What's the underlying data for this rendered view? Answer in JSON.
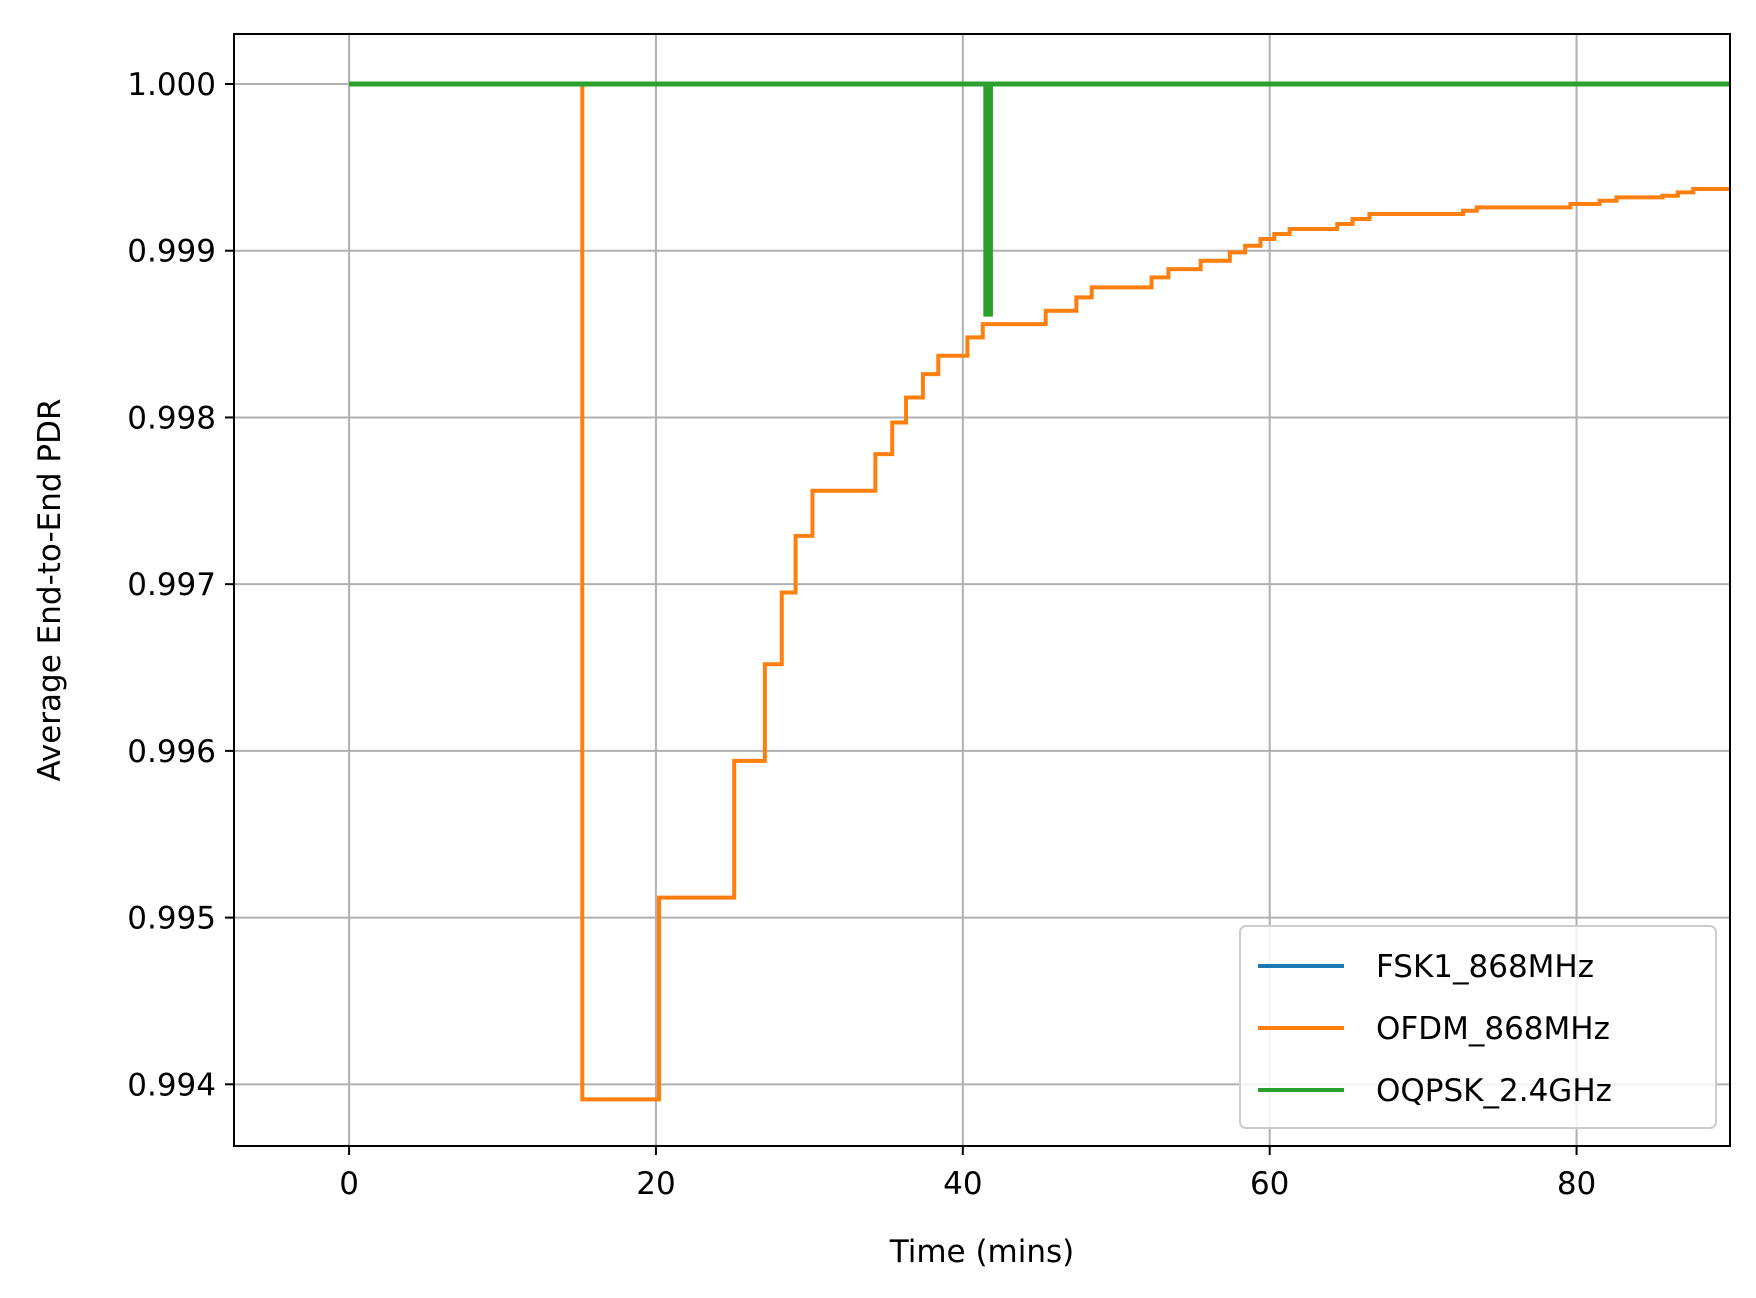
{
  "chart_data": {
    "type": "line",
    "title": "",
    "xlabel": "Time (mins)",
    "ylabel": "Average End-to-End PDR",
    "xlim": [
      -7.5,
      90
    ],
    "ylim": [
      0.99363,
      1.0003
    ],
    "xticks": [
      0,
      20,
      40,
      60,
      80
    ],
    "xtick_labels": [
      "0",
      "20",
      "40",
      "60",
      "80"
    ],
    "yticks": [
      0.994,
      0.995,
      0.996,
      0.997,
      0.998,
      0.999,
      1.0
    ],
    "ytick_labels": [
      "0.994",
      "0.995",
      "0.996",
      "0.997",
      "0.998",
      "0.999",
      "1.000"
    ],
    "grid": true,
    "legend_position": "lower right",
    "series": [
      {
        "name": "FSK1_868MHz",
        "color": "#1f77b4",
        "x": [
          0,
          90
        ],
        "y": [
          1.0,
          1.0
        ]
      },
      {
        "name": "OFDM_868MHz",
        "color": "#ff7f0e",
        "step": true,
        "x": [
          0,
          15.2,
          15.2,
          20.2,
          20.2,
          25.1,
          25.1,
          27.1,
          27.1,
          28.2,
          28.2,
          29.1,
          29.1,
          30.2,
          30.2,
          34.3,
          34.3,
          35.4,
          35.4,
          36.3,
          36.3,
          37.4,
          37.4,
          38.4,
          38.4,
          40.3,
          40.3,
          41.3,
          41.3,
          45.4,
          45.4,
          47.4,
          47.4,
          48.4,
          48.4,
          52.3,
          52.3,
          53.4,
          53.4,
          55.5,
          55.5,
          57.4,
          57.4,
          58.4,
          58.4,
          59.4,
          59.4,
          60.3,
          60.3,
          61.3,
          61.3,
          64.4,
          64.4,
          65.4,
          65.4,
          66.5,
          66.5,
          72.6,
          72.6,
          73.5,
          73.5,
          79.6,
          79.6,
          81.5,
          81.5,
          82.6,
          82.6,
          85.6,
          85.6,
          86.6,
          86.6,
          87.6,
          87.6,
          90
        ],
        "y": [
          1.0,
          1.0,
          0.99391,
          0.99391,
          0.99512,
          0.99512,
          0.99594,
          0.99594,
          0.99652,
          0.99652,
          0.99695,
          0.99695,
          0.99729,
          0.99729,
          0.99756,
          0.99756,
          0.99778,
          0.99778,
          0.99797,
          0.99797,
          0.99812,
          0.99812,
          0.99826,
          0.99826,
          0.99837,
          0.99837,
          0.99848,
          0.99848,
          0.99856,
          0.99856,
          0.99864,
          0.99864,
          0.99872,
          0.99872,
          0.99878,
          0.99878,
          0.99884,
          0.99884,
          0.99889,
          0.99889,
          0.99894,
          0.99894,
          0.99899,
          0.99899,
          0.99903,
          0.99903,
          0.99907,
          0.99907,
          0.9991,
          0.9991,
          0.99913,
          0.99913,
          0.99916,
          0.99916,
          0.99919,
          0.99919,
          0.99922,
          0.99922,
          0.99924,
          0.99924,
          0.99926,
          0.99926,
          0.99928,
          0.99928,
          0.9993,
          0.9993,
          0.99932,
          0.99932,
          0.99933,
          0.99933,
          0.99935,
          0.99935,
          0.99937,
          0.99937
        ]
      },
      {
        "name": "OQPSK_2.4GHz",
        "color": "#2ca02c",
        "x": [
          0,
          41.5,
          41.5,
          41.8,
          41.8,
          90
        ],
        "y": [
          1.0,
          1.0,
          0.99862,
          0.99862,
          1.0,
          1.0
        ]
      }
    ]
  }
}
